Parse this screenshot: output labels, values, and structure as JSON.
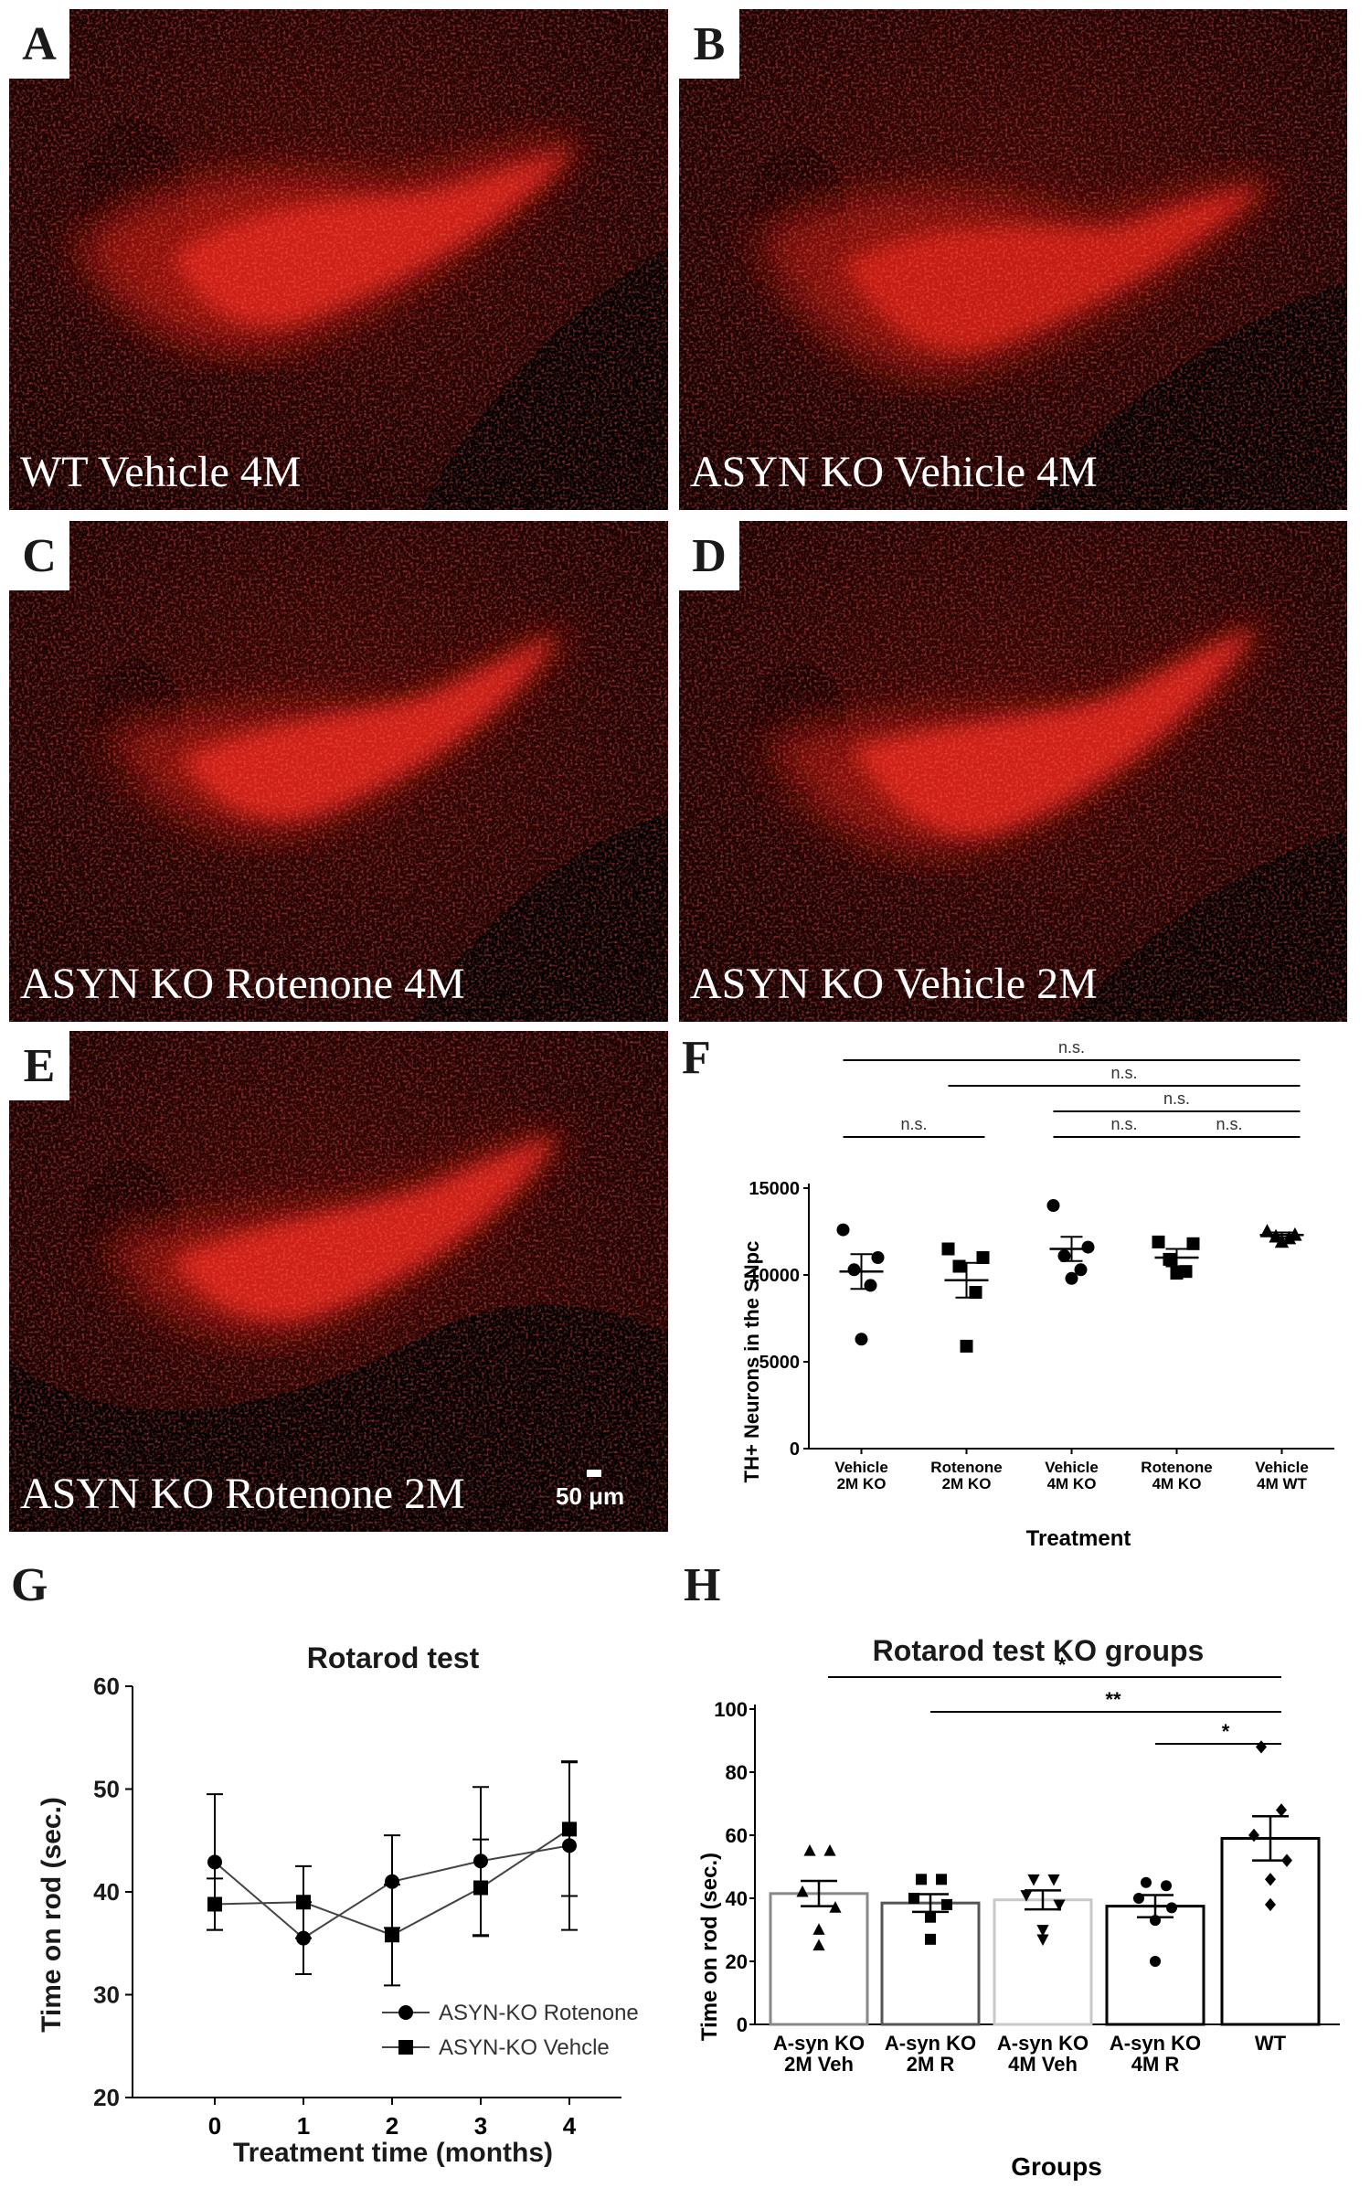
{
  "panels": [
    {
      "letter": "A",
      "caption": "WT Vehicle 4M"
    },
    {
      "letter": "B",
      "caption": "ASYN KO Vehicle 4M"
    },
    {
      "letter": "C",
      "caption": "ASYN KO Rotenone 4M"
    },
    {
      "letter": "D",
      "caption": "ASYN KO Vehicle 2M"
    },
    {
      "letter": "E",
      "caption": "ASYN KO Rotenone 2M"
    }
  ],
  "scale_bar_label": "50 μm",
  "colors": {
    "stain": "#e0201c",
    "background": "#000000"
  },
  "chart_data": [
    {
      "letter": "F",
      "type": "scatter",
      "title": "",
      "xlabel": "Treatment",
      "ylabel": "TH+ Neurons in the SNpc",
      "ylim": [
        0,
        15000
      ],
      "yticks": [
        0,
        5000,
        10000,
        15000
      ],
      "categories": [
        "Vehicle\n2M KO",
        "Rotenone\n2M KO",
        "Vehicle\n4M KO",
        "Rotenone\n4M KO",
        "Vehicle\n4M WT"
      ],
      "markers": [
        "circle",
        "square",
        "circle",
        "square",
        "triangle"
      ],
      "points": [
        [
          12600,
          11000,
          10300,
          9400,
          6300
        ],
        [
          11500,
          11000,
          10500,
          9000,
          5900
        ],
        [
          14000,
          11600,
          11100,
          10300,
          9800
        ],
        [
          11900,
          11800,
          10900,
          10200,
          10100
        ],
        [
          12500,
          12300,
          12200,
          12100,
          11900
        ]
      ],
      "mean": [
        10200,
        9700,
        11500,
        11000,
        12300
      ],
      "sem": [
        1000,
        1000,
        700,
        500,
        150
      ],
      "significance": [
        {
          "from": 0,
          "to": 4,
          "label": "n.s."
        },
        {
          "from": 1,
          "to": 4,
          "label": "n.s."
        },
        {
          "from": 2,
          "to": 4,
          "label": "n.s."
        },
        {
          "from": 0,
          "to": 1,
          "label": "n.s."
        },
        {
          "from": 2,
          "to": 3,
          "label": "n.s."
        },
        {
          "from": 3,
          "to": 4,
          "label": "n.s."
        }
      ]
    },
    {
      "letter": "G",
      "type": "line",
      "title": "Rotarod test",
      "xlabel": "Treatment time (months)",
      "ylabel": "Time on rod (sec.)",
      "x": [
        0,
        1,
        2,
        3,
        4
      ],
      "ylim": [
        20,
        60
      ],
      "yticks": [
        20,
        30,
        40,
        50,
        60
      ],
      "legend_position": "bottom-right",
      "series": [
        {
          "name": "ASYN-KO Rotenone",
          "marker": "circle",
          "values": [
            42.9,
            35.5,
            41.0,
            43.0,
            44.5
          ],
          "error": [
            6.6,
            3.5,
            4.5,
            7.2,
            8.2
          ]
        },
        {
          "name": "ASYN-KO Vehcle",
          "marker": "square",
          "values": [
            38.8,
            39.0,
            35.8,
            40.4,
            46.1
          ],
          "error": [
            2.5,
            3.5,
            4.9,
            4.7,
            6.5
          ]
        }
      ]
    },
    {
      "letter": "H",
      "type": "bar",
      "title": "Rotarod test KO groups",
      "xlabel": "Groups",
      "ylabel": "Time on rod (sec.)",
      "ylim": [
        0,
        100
      ],
      "yticks": [
        0,
        20,
        40,
        60,
        80,
        100
      ],
      "categories": [
        "A-syn KO\n2M Veh",
        "A-syn KO\n2M R",
        "A-syn KO\n4M Veh",
        "A-syn KO\n4M R",
        "WT"
      ],
      "values": [
        41.5,
        38.5,
        39.5,
        37.5,
        59.0
      ],
      "sem": [
        4.0,
        2.8,
        3.0,
        3.5,
        7.0
      ],
      "bar_colors": [
        "#888888",
        "#555555",
        "#c8c8c8",
        "#000000",
        "#000000"
      ],
      "markers": [
        "triangle",
        "square",
        "triangle-down",
        "circle",
        "diamond"
      ],
      "points": [
        [
          55,
          55,
          42,
          37,
          30,
          25
        ],
        [
          46,
          46,
          40,
          38,
          34,
          27
        ],
        [
          46,
          46,
          41,
          38,
          30,
          27
        ],
        [
          45,
          44,
          40,
          37,
          33,
          20
        ],
        [
          88,
          68,
          60,
          52,
          46,
          38
        ]
      ],
      "significance": [
        {
          "from": 0,
          "to": 4,
          "label": "*"
        },
        {
          "from": 1,
          "to": 4,
          "label": "**"
        },
        {
          "from": 3,
          "to": 4,
          "label": "*"
        }
      ]
    }
  ]
}
